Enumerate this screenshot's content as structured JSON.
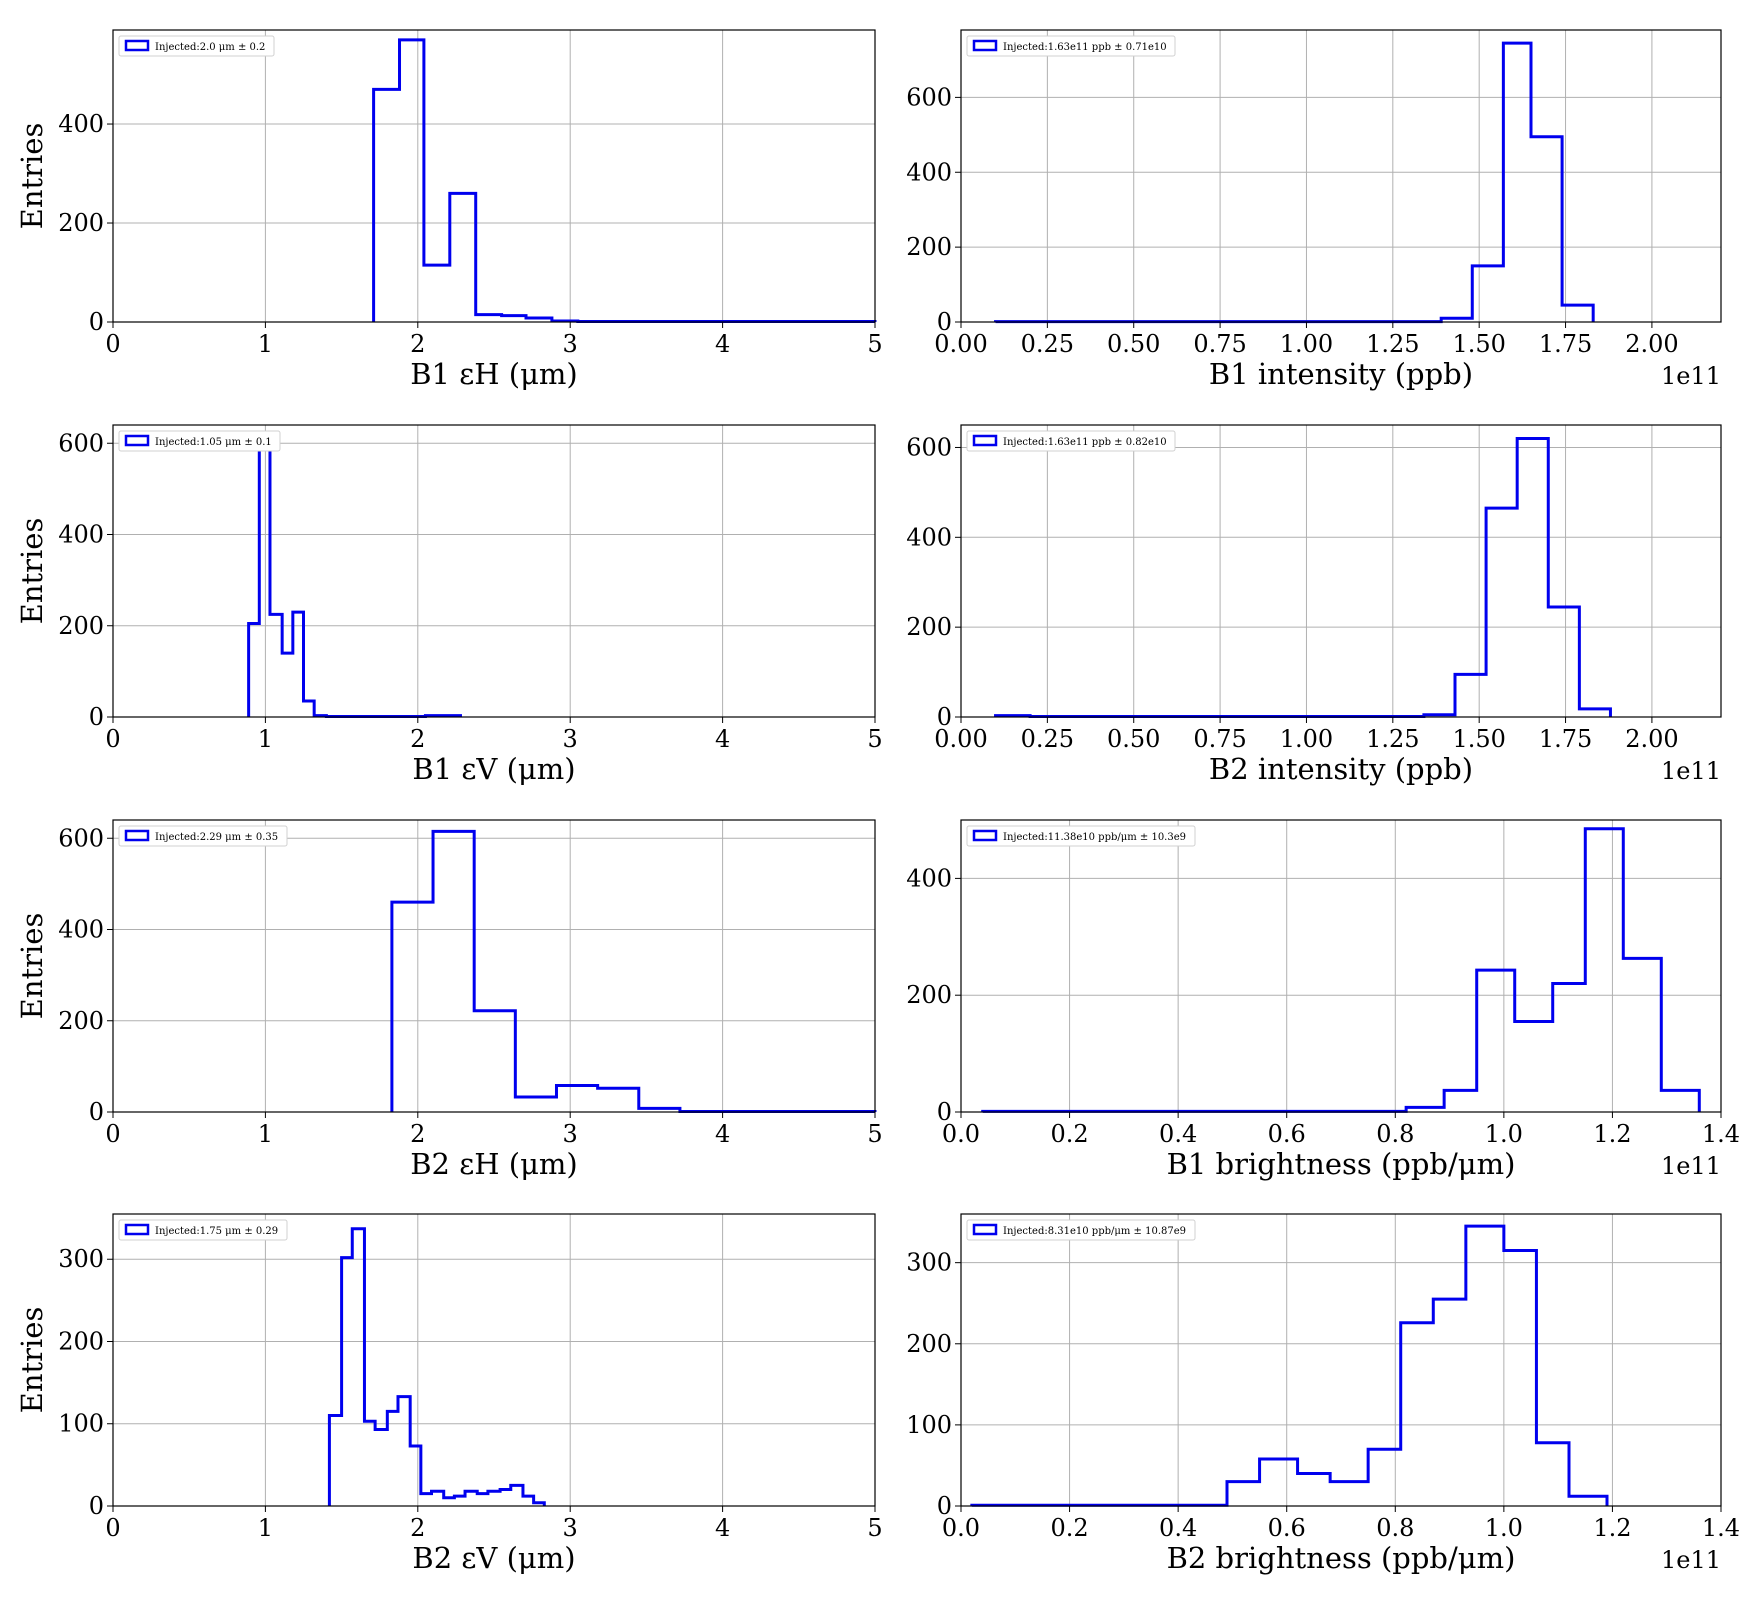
{
  "figure": {
    "line_color": "#0000ee",
    "grid_color": "#b0b0b0"
  },
  "chart_data": [
    {
      "type": "histogram",
      "xlabel": "B1 εH (μm)",
      "ylabel": "Entries",
      "xlim": [
        0,
        5
      ],
      "ylim": [
        0,
        590
      ],
      "xticks": [
        0,
        1,
        2,
        3,
        4,
        5
      ],
      "xtick_labels": [
        "0",
        "1",
        "2",
        "3",
        "4",
        "5"
      ],
      "yticks": [
        0,
        200,
        400
      ],
      "ytick_labels": [
        "0",
        "200",
        "400"
      ],
      "offset_label": "",
      "grid": true,
      "legend_position": "top-left",
      "legend": "Injected:2.0 μm ± 0.2",
      "bins": [
        [
          1.71,
          1.88,
          470
        ],
        [
          1.88,
          2.04,
          570
        ],
        [
          2.04,
          2.21,
          115
        ],
        [
          2.21,
          2.38,
          260
        ],
        [
          2.38,
          2.55,
          15
        ],
        [
          2.55,
          2.71,
          13
        ],
        [
          2.71,
          2.88,
          8
        ],
        [
          2.88,
          3.05,
          2
        ],
        [
          3.05,
          5.0,
          1
        ]
      ]
    },
    {
      "type": "histogram",
      "xlabel": "B1 intensity (ppb)",
      "ylabel": "",
      "xlim": [
        0.0,
        2.2
      ],
      "ylim": [
        0,
        780
      ],
      "xticks": [
        0,
        0.25,
        0.5,
        0.75,
        1.0,
        1.25,
        1.5,
        1.75,
        2.0
      ],
      "xtick_labels": [
        "0.00",
        "0.25",
        "0.50",
        "0.75",
        "1.00",
        "1.25",
        "1.50",
        "1.75",
        "2.00"
      ],
      "yticks": [
        0,
        200,
        400,
        600
      ],
      "ytick_labels": [
        "0",
        "200",
        "400",
        "600"
      ],
      "offset_label": "1e11",
      "grid": true,
      "legend_position": "top-left",
      "legend": "Injected:1.63e11 ppb ± 0.71e10",
      "bins": [
        [
          0.1,
          1.39,
          1
        ],
        [
          1.39,
          1.48,
          10
        ],
        [
          1.48,
          1.57,
          150
        ],
        [
          1.57,
          1.65,
          745
        ],
        [
          1.65,
          1.74,
          495
        ],
        [
          1.74,
          1.83,
          45
        ]
      ]
    },
    {
      "type": "histogram",
      "xlabel": "B1 εV (μm)",
      "ylabel": "Entries",
      "xlim": [
        0,
        5
      ],
      "ylim": [
        0,
        640
      ],
      "xticks": [
        0,
        1,
        2,
        3,
        4,
        5
      ],
      "xtick_labels": [
        "0",
        "1",
        "2",
        "3",
        "4",
        "5"
      ],
      "yticks": [
        0,
        200,
        400,
        600
      ],
      "ytick_labels": [
        "0",
        "200",
        "400",
        "600"
      ],
      "offset_label": "",
      "grid": true,
      "legend_position": "top-left",
      "legend": "Injected:1.05 μm ± 0.1",
      "bins": [
        [
          0.89,
          0.96,
          205
        ],
        [
          0.96,
          1.03,
          615
        ],
        [
          1.03,
          1.11,
          225
        ],
        [
          1.11,
          1.18,
          140
        ],
        [
          1.18,
          1.25,
          230
        ],
        [
          1.25,
          1.32,
          35
        ],
        [
          1.32,
          1.4,
          3
        ],
        [
          1.4,
          2.05,
          1
        ],
        [
          2.05,
          2.28,
          3
        ]
      ]
    },
    {
      "type": "histogram",
      "xlabel": "B2 intensity (ppb)",
      "ylabel": "",
      "xlim": [
        0.0,
        2.2
      ],
      "ylim": [
        0,
        650
      ],
      "xticks": [
        0,
        0.25,
        0.5,
        0.75,
        1.0,
        1.25,
        1.5,
        1.75,
        2.0
      ],
      "xtick_labels": [
        "0.00",
        "0.25",
        "0.50",
        "0.75",
        "1.00",
        "1.25",
        "1.50",
        "1.75",
        "2.00"
      ],
      "yticks": [
        0,
        200,
        400,
        600
      ],
      "ytick_labels": [
        "0",
        "200",
        "400",
        "600"
      ],
      "offset_label": "1e11",
      "grid": true,
      "legend_position": "top-left",
      "legend": "Injected:1.63e11 ppb ± 0.82e10",
      "bins": [
        [
          0.1,
          0.2,
          3
        ],
        [
          0.2,
          1.34,
          1
        ],
        [
          1.34,
          1.43,
          5
        ],
        [
          1.43,
          1.52,
          95
        ],
        [
          1.52,
          1.61,
          465
        ],
        [
          1.61,
          1.7,
          620
        ],
        [
          1.7,
          1.79,
          245
        ],
        [
          1.79,
          1.88,
          18
        ]
      ]
    },
    {
      "type": "histogram",
      "xlabel": "B2 εH (μm)",
      "ylabel": "Entries",
      "xlim": [
        0,
        5
      ],
      "ylim": [
        0,
        640
      ],
      "xticks": [
        0,
        1,
        2,
        3,
        4,
        5
      ],
      "xtick_labels": [
        "0",
        "1",
        "2",
        "3",
        "4",
        "5"
      ],
      "yticks": [
        0,
        200,
        400,
        600
      ],
      "ytick_labels": [
        "0",
        "200",
        "400",
        "600"
      ],
      "offset_label": "",
      "grid": true,
      "legend_position": "top-left",
      "legend": "Injected:2.29 μm ± 0.35",
      "bins": [
        [
          1.83,
          2.1,
          460
        ],
        [
          2.1,
          2.37,
          615
        ],
        [
          2.37,
          2.64,
          222
        ],
        [
          2.64,
          2.91,
          33
        ],
        [
          2.91,
          3.18,
          58
        ],
        [
          3.18,
          3.45,
          52
        ],
        [
          3.45,
          3.72,
          8
        ],
        [
          3.72,
          5.0,
          1
        ]
      ]
    },
    {
      "type": "histogram",
      "xlabel": "B1 brightness (ppb/μm)",
      "ylabel": "",
      "xlim": [
        0.0,
        1.4
      ],
      "ylim": [
        0,
        500
      ],
      "xticks": [
        0,
        0.2,
        0.4,
        0.6,
        0.8,
        1.0,
        1.2,
        1.4
      ],
      "xtick_labels": [
        "0.0",
        "0.2",
        "0.4",
        "0.6",
        "0.8",
        "1.0",
        "1.2",
        "1.4"
      ],
      "yticks": [
        0,
        200,
        400
      ],
      "ytick_labels": [
        "0",
        "200",
        "400"
      ],
      "offset_label": "1e11",
      "grid": true,
      "legend_position": "top-left",
      "legend": "Injected:11.38e10 ppb/μm ± 10.3e9",
      "bins": [
        [
          0.04,
          0.82,
          1
        ],
        [
          0.82,
          0.89,
          8
        ],
        [
          0.89,
          0.95,
          37
        ],
        [
          0.95,
          1.02,
          243
        ],
        [
          1.02,
          1.09,
          155
        ],
        [
          1.09,
          1.15,
          220
        ],
        [
          1.15,
          1.22,
          485
        ],
        [
          1.22,
          1.29,
          263
        ],
        [
          1.29,
          1.36,
          37
        ]
      ]
    },
    {
      "type": "histogram",
      "xlabel": "B2 εV (μm)",
      "ylabel": "Entries",
      "xlim": [
        0,
        5
      ],
      "ylim": [
        0,
        355
      ],
      "xticks": [
        0,
        1,
        2,
        3,
        4,
        5
      ],
      "xtick_labels": [
        "0",
        "1",
        "2",
        "3",
        "4",
        "5"
      ],
      "yticks": [
        0,
        100,
        200,
        300
      ],
      "ytick_labels": [
        "0",
        "100",
        "200",
        "300"
      ],
      "offset_label": "",
      "grid": true,
      "legend_position": "top-left",
      "legend": "Injected:1.75 μm ± 0.29",
      "bins": [
        [
          1.42,
          1.5,
          110
        ],
        [
          1.5,
          1.57,
          302
        ],
        [
          1.57,
          1.65,
          337
        ],
        [
          1.65,
          1.72,
          103
        ],
        [
          1.72,
          1.8,
          93
        ],
        [
          1.8,
          1.87,
          115
        ],
        [
          1.87,
          1.95,
          133
        ],
        [
          1.95,
          2.02,
          73
        ],
        [
          2.02,
          2.09,
          15
        ],
        [
          2.09,
          2.17,
          18
        ],
        [
          2.17,
          2.24,
          10
        ],
        [
          2.24,
          2.31,
          12
        ],
        [
          2.31,
          2.39,
          18
        ],
        [
          2.39,
          2.46,
          15
        ],
        [
          2.46,
          2.54,
          18
        ],
        [
          2.54,
          2.61,
          20
        ],
        [
          2.61,
          2.69,
          25
        ],
        [
          2.69,
          2.76,
          12
        ],
        [
          2.76,
          2.83,
          4
        ]
      ]
    },
    {
      "type": "histogram",
      "xlabel": "B2 brightness (ppb/μm)",
      "ylabel": "",
      "xlim": [
        0.0,
        1.4
      ],
      "ylim": [
        0,
        360
      ],
      "xticks": [
        0,
        0.2,
        0.4,
        0.6,
        0.8,
        1.0,
        1.2,
        1.4
      ],
      "xtick_labels": [
        "0.0",
        "0.2",
        "0.4",
        "0.6",
        "0.8",
        "1.0",
        "1.2",
        "1.4"
      ],
      "yticks": [
        0,
        100,
        200,
        300
      ],
      "ytick_labels": [
        "0",
        "100",
        "200",
        "300"
      ],
      "offset_label": "1e11",
      "grid": true,
      "legend_position": "top-left",
      "legend": "Injected:8.31e10 ppb/μm ± 10.87e9",
      "bins": [
        [
          0.02,
          0.49,
          1
        ],
        [
          0.49,
          0.55,
          30
        ],
        [
          0.55,
          0.62,
          58
        ],
        [
          0.62,
          0.68,
          40
        ],
        [
          0.68,
          0.75,
          30
        ],
        [
          0.75,
          0.81,
          70
        ],
        [
          0.81,
          0.87,
          226
        ],
        [
          0.87,
          0.93,
          255
        ],
        [
          0.93,
          1.0,
          345
        ],
        [
          1.0,
          1.06,
          315
        ],
        [
          1.06,
          1.12,
          78
        ],
        [
          1.12,
          1.19,
          12
        ]
      ]
    }
  ]
}
